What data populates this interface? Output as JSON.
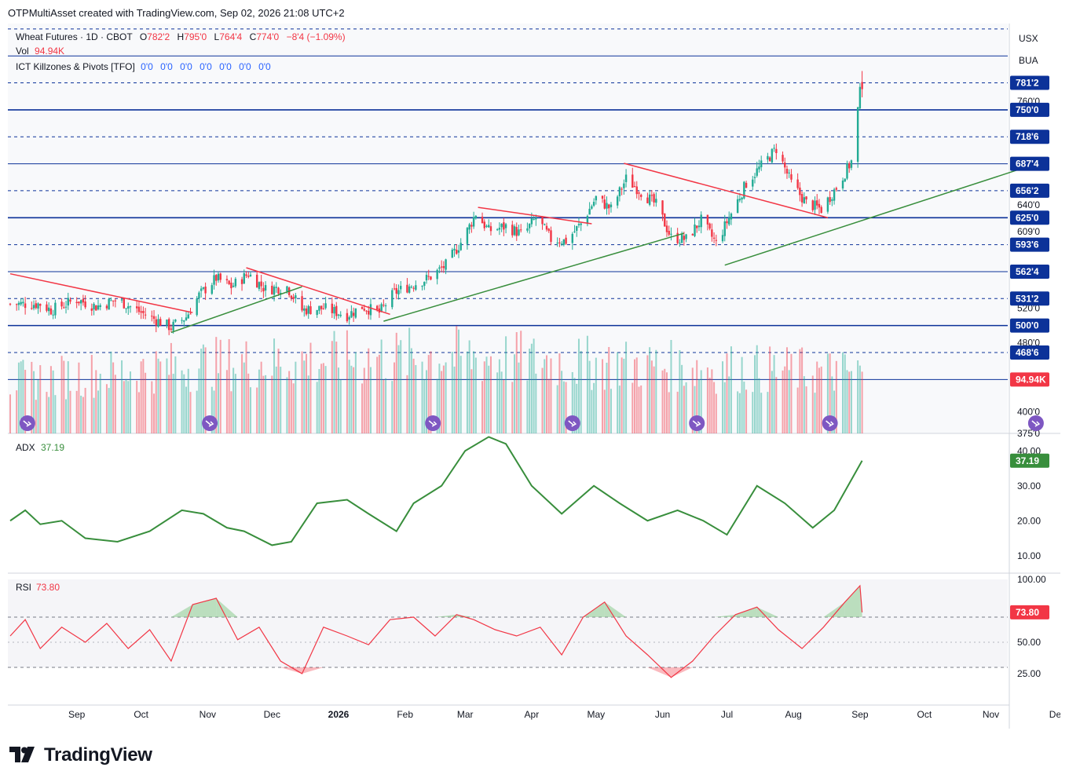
{
  "header": {
    "created_by": "OTPMultiAsset created with TradingView.com, Sep 02, 2026 21:08 UTC+2"
  },
  "legend": {
    "symbol": "Wheat Futures · 1D · CBOT",
    "open_label": "O",
    "open": "782'2",
    "high_label": "H",
    "high": "795'0",
    "low_label": "L",
    "low": "764'4",
    "close_label": "C",
    "close": "774'0",
    "change": "−8'4 (−1.09%)",
    "vol_label": "Vol",
    "vol": "94.94K",
    "indicator": "ICT Killzones & Pivots [TFO]",
    "indicator_values": [
      "0'0",
      "0'0",
      "0'0",
      "0'0",
      "0'0",
      "0'0",
      "0'0"
    ]
  },
  "units": [
    "USX",
    "BUA"
  ],
  "colors": {
    "up": "#22ab94",
    "down": "#f23645",
    "level": "#0c3299",
    "trend_down": "#f23645",
    "trend_up": "#388e3c",
    "adx": "#388e3c",
    "rsi": "#f23645",
    "price_tag": "#0c3299"
  },
  "chart_data": [
    {
      "type": "candlestick",
      "title": "Wheat Futures · 1D · CBOT",
      "x_labels": [
        "Sep",
        "Oct",
        "Nov",
        "Dec",
        "2026",
        "Feb",
        "Mar",
        "Apr",
        "May",
        "Jun",
        "Jul",
        "Aug",
        "Sep",
        "Oct",
        "Nov",
        "De"
      ],
      "price_axis_labels": [
        "760'0",
        "640'0",
        "609'0",
        "520'0",
        "480'0",
        "400'0",
        "375'0"
      ],
      "levels": [
        {
          "label": "781'2",
          "value": 781.25,
          "style": "dashed"
        },
        {
          "label": "750'0",
          "value": 750,
          "style": "solid-bold"
        },
        {
          "label": "718'6",
          "value": 718.75,
          "style": "dashed"
        },
        {
          "label": "687'4",
          "value": 687.5,
          "style": "solid"
        },
        {
          "label": "656'2",
          "value": 656.25,
          "style": "dashed"
        },
        {
          "label": "625'0",
          "value": 625,
          "style": "solid-bold"
        },
        {
          "label": "593'6",
          "value": 593.75,
          "style": "dashed"
        },
        {
          "label": "562'4",
          "value": 562.5,
          "style": "solid"
        },
        {
          "label": "531'2",
          "value": 531.25,
          "style": "dashed"
        },
        {
          "label": "500'0",
          "value": 500,
          "style": "solid-bold"
        },
        {
          "label": "468'6",
          "value": 468.75,
          "style": "dashed"
        },
        {
          "label": "94.94K",
          "value": 437.5,
          "style": "solid"
        }
      ],
      "extra_levels": [
        812.5,
        843.75
      ],
      "ylim": [
        375,
        850
      ],
      "anchors": [
        [
          "2025-08-15",
          525
        ],
        [
          "2025-08-20",
          518
        ],
        [
          "2025-09-01",
          530
        ],
        [
          "2025-09-10",
          522
        ],
        [
          "2025-09-20",
          530
        ],
        [
          "2025-10-01",
          515
        ],
        [
          "2025-10-15",
          498
        ],
        [
          "2025-10-22",
          510
        ],
        [
          "2025-10-28",
          535
        ],
        [
          "2025-11-05",
          555
        ],
        [
          "2025-11-12",
          545
        ],
        [
          "2025-11-20",
          560
        ],
        [
          "2025-11-28",
          542
        ],
        [
          "2025-12-08",
          545
        ],
        [
          "2025-12-15",
          518
        ],
        [
          "2025-12-25",
          520
        ],
        [
          "2026-01-05",
          512
        ],
        [
          "2026-01-12",
          522
        ],
        [
          "2026-01-20",
          515
        ],
        [
          "2026-01-27",
          538
        ],
        [
          "2026-02-05",
          548
        ],
        [
          "2026-02-12",
          555
        ],
        [
          "2026-02-20",
          570
        ],
        [
          "2026-02-28",
          600
        ],
        [
          "2026-03-06",
          630
        ],
        [
          "2026-03-12",
          610
        ],
        [
          "2026-03-20",
          615
        ],
        [
          "2026-03-28",
          605
        ],
        [
          "2026-04-03",
          625
        ],
        [
          "2026-04-10",
          600
        ],
        [
          "2026-04-17",
          598
        ],
        [
          "2026-04-24",
          618
        ],
        [
          "2026-05-01",
          648
        ],
        [
          "2026-05-08",
          635
        ],
        [
          "2026-05-15",
          670
        ],
        [
          "2026-05-22",
          655
        ],
        [
          "2026-05-29",
          640
        ],
        [
          "2026-06-05",
          602
        ],
        [
          "2026-06-12",
          600
        ],
        [
          "2026-06-19",
          622
        ],
        [
          "2026-06-26",
          595
        ],
        [
          "2026-07-03",
          630
        ],
        [
          "2026-07-10",
          665
        ],
        [
          "2026-07-17",
          685
        ],
        [
          "2026-07-24",
          705
        ],
        [
          "2026-07-31",
          665
        ],
        [
          "2026-08-07",
          642
        ],
        [
          "2026-08-14",
          635
        ],
        [
          "2026-08-21",
          660
        ],
        [
          "2026-08-28",
          690
        ],
        [
          "2026-09-01",
          770
        ],
        [
          "2026-09-02",
          774
        ]
      ],
      "last_bar": {
        "date": "2026-09-02",
        "open": 782.25,
        "high": 795,
        "low": 764.5,
        "close": 774
      },
      "trendlines": [
        {
          "color": "down",
          "from": [
            "2025-08-01",
            560
          ],
          "to": [
            "2025-10-25",
            515
          ]
        },
        {
          "color": "up",
          "from": [
            "2025-10-15",
            492
          ],
          "to": [
            "2025-12-15",
            545
          ]
        },
        {
          "color": "down",
          "from": [
            "2025-11-19",
            567
          ],
          "to": [
            "2026-01-25",
            513
          ]
        },
        {
          "color": "up",
          "from": [
            "2026-01-22",
            505
          ],
          "to": [
            "2026-06-11",
            607
          ]
        },
        {
          "color": "down",
          "from": [
            "2026-03-07",
            637
          ],
          "to": [
            "2026-04-29",
            618
          ]
        },
        {
          "color": "down",
          "from": [
            "2026-05-14",
            688
          ],
          "to": [
            "2026-08-17",
            625
          ]
        },
        {
          "color": "up",
          "from": [
            "2026-06-30",
            570
          ],
          "to": [
            "2026-11-13",
            680
          ]
        }
      ],
      "session_markers": [
        "2025-08-09",
        "2025-11-02",
        "2026-02-14",
        "2026-04-20",
        "2026-06-17",
        "2026-08-18",
        "2026-11-22"
      ]
    },
    {
      "type": "bar",
      "title": "Vol",
      "last_value": "94.94K",
      "anchors": [
        [
          "2025-08-01",
          60
        ],
        [
          "2025-10-30",
          80
        ],
        [
          "2026-02-20",
          90
        ],
        [
          "2026-05-08",
          80
        ],
        [
          "2026-09-02",
          70
        ]
      ]
    },
    {
      "type": "line",
      "title": "ADX",
      "last_value": 37.19,
      "axis_labels": [
        "40.00",
        "30.00",
        "20.00",
        "10.00"
      ],
      "ylim": [
        5,
        45
      ],
      "series": [
        {
          "name": "ADX",
          "values": [
            [
              "2025-08-01",
              20
            ],
            [
              "2025-08-08",
              23
            ],
            [
              "2025-08-15",
              19
            ],
            [
              "2025-08-25",
              20
            ],
            [
              "2025-09-05",
              15
            ],
            [
              "2025-09-20",
              14
            ],
            [
              "2025-10-05",
              17
            ],
            [
              "2025-10-20",
              23
            ],
            [
              "2025-10-30",
              22
            ],
            [
              "2025-11-10",
              18
            ],
            [
              "2025-11-18",
              17
            ],
            [
              "2025-12-01",
              13
            ],
            [
              "2025-12-10",
              14
            ],
            [
              "2025-12-22",
              25
            ],
            [
              "2026-01-05",
              26
            ],
            [
              "2026-01-15",
              22
            ],
            [
              "2026-01-28",
              17
            ],
            [
              "2026-02-05",
              25
            ],
            [
              "2026-02-18",
              30
            ],
            [
              "2026-03-01",
              40
            ],
            [
              "2026-03-12",
              44
            ],
            [
              "2026-03-20",
              42
            ],
            [
              "2026-04-01",
              30
            ],
            [
              "2026-04-15",
              22
            ],
            [
              "2026-04-30",
              30
            ],
            [
              "2026-05-12",
              25
            ],
            [
              "2026-05-25",
              20
            ],
            [
              "2026-06-08",
              23
            ],
            [
              "2026-06-20",
              20
            ],
            [
              "2026-07-01",
              16
            ],
            [
              "2026-07-15",
              30
            ],
            [
              "2026-07-28",
              25
            ],
            [
              "2026-08-10",
              18
            ],
            [
              "2026-08-20",
              23
            ],
            [
              "2026-09-02",
              37.19
            ]
          ]
        }
      ]
    },
    {
      "type": "area",
      "title": "RSI",
      "last_value": 73.8,
      "axis_labels": [
        "100.00",
        "73.80",
        "50.00",
        "25.00"
      ],
      "ylim": [
        0,
        105
      ],
      "bands": [
        70,
        30
      ],
      "series": [
        {
          "name": "RSI",
          "values": [
            [
              "2025-08-01",
              55
            ],
            [
              "2025-08-08",
              68
            ],
            [
              "2025-08-15",
              45
            ],
            [
              "2025-08-25",
              62
            ],
            [
              "2025-09-05",
              50
            ],
            [
              "2025-09-15",
              65
            ],
            [
              "2025-09-25",
              45
            ],
            [
              "2025-10-05",
              60
            ],
            [
              "2025-10-15",
              35
            ],
            [
              "2025-10-25",
              80
            ],
            [
              "2025-11-05",
              85
            ],
            [
              "2025-11-15",
              52
            ],
            [
              "2025-11-25",
              62
            ],
            [
              "2025-12-05",
              35
            ],
            [
              "2025-12-15",
              25
            ],
            [
              "2025-12-25",
              62
            ],
            [
              "2026-01-05",
              55
            ],
            [
              "2026-01-15",
              48
            ],
            [
              "2026-01-25",
              68
            ],
            [
              "2026-02-05",
              70
            ],
            [
              "2026-02-15",
              55
            ],
            [
              "2026-02-25",
              72
            ],
            [
              "2026-03-05",
              68
            ],
            [
              "2026-03-15",
              60
            ],
            [
              "2026-03-25",
              55
            ],
            [
              "2026-04-05",
              62
            ],
            [
              "2026-04-15",
              40
            ],
            [
              "2026-04-25",
              70
            ],
            [
              "2026-05-05",
              82
            ],
            [
              "2026-05-15",
              55
            ],
            [
              "2026-05-25",
              40
            ],
            [
              "2026-06-05",
              22
            ],
            [
              "2026-06-15",
              35
            ],
            [
              "2026-06-25",
              55
            ],
            [
              "2026-07-05",
              72
            ],
            [
              "2026-07-15",
              78
            ],
            [
              "2026-07-25",
              60
            ],
            [
              "2026-08-05",
              45
            ],
            [
              "2026-08-15",
              62
            ],
            [
              "2026-08-25",
              82
            ],
            [
              "2026-09-01",
              95
            ],
            [
              "2026-09-02",
              73.8
            ]
          ]
        }
      ]
    }
  ],
  "brand": {
    "name": "TradingView"
  }
}
